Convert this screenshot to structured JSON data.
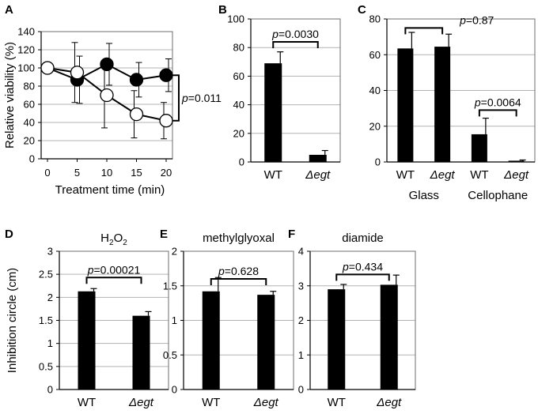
{
  "figure": {
    "background": "#ffffff",
    "bar_color": "#000000",
    "grid_color": "#b3b3b3"
  },
  "chart_data": [
    {
      "id": "A",
      "panel_label": "A",
      "type": "line",
      "xlabel": "Treatment time (min)",
      "ylabel": "Relative viability (%)",
      "x": [
        0,
        5,
        10,
        15,
        20
      ],
      "xticks": [
        "0",
        "5",
        "10",
        "15",
        "20"
      ],
      "ylim": [
        0,
        140
      ],
      "yticks": [
        "0",
        "20",
        "40",
        "60",
        "80",
        "100",
        "120",
        "140"
      ],
      "grid": true,
      "series": [
        {
          "name": "filled",
          "marker": "filled-circle",
          "values": [
            100,
            87,
            104,
            87,
            92
          ],
          "err": [
            0,
            26,
            23,
            19,
            18
          ]
        },
        {
          "name": "open",
          "marker": "open-circle",
          "values": [
            100,
            95,
            70,
            49,
            42
          ],
          "err": [
            0,
            33,
            36,
            26,
            20
          ]
        }
      ],
      "annotation": {
        "p_label": "p",
        "p_value": "=0.011",
        "between_x": 20
      }
    },
    {
      "id": "B",
      "panel_label": "B",
      "type": "bar",
      "title": "",
      "ylabel": "",
      "categories": [
        "WT",
        "Δegt"
      ],
      "values": [
        69,
        5
      ],
      "err": [
        8,
        3
      ],
      "ylim": [
        0,
        100
      ],
      "yticks": [
        "0",
        "20",
        "40",
        "60",
        "80",
        "100"
      ],
      "grid": true,
      "brackets": [
        {
          "from": 0,
          "to": 1,
          "level": 84,
          "p_label": "p",
          "p_value": "=0.0030"
        }
      ]
    },
    {
      "id": "C",
      "panel_label": "C",
      "type": "bar",
      "categories": [
        "WT",
        "Δegt",
        "WT",
        "Δegt"
      ],
      "groups": [
        "Glass",
        "Cellophane"
      ],
      "values": [
        63.5,
        64.5,
        15.5,
        0.7
      ],
      "err": [
        9,
        7,
        9,
        0.4
      ],
      "ylim": [
        0,
        80
      ],
      "yticks": [
        "0",
        "20",
        "40",
        "60",
        "80"
      ],
      "grid": true,
      "brackets": [
        {
          "from": 0,
          "to": 1,
          "level": 75,
          "p_label": "p",
          "p_value": "=0.87"
        },
        {
          "from": 2,
          "to": 3,
          "level": 29,
          "p_label": "p",
          "p_value": "=0.0064"
        }
      ]
    },
    {
      "id": "D",
      "panel_label": "D",
      "type": "bar",
      "title_main": "H",
      "title_sub": "2",
      "title_main2": "O",
      "title_sub2": "2",
      "ylabel": "Inhibition circle (cm)",
      "categories": [
        "WT",
        "Δegt"
      ],
      "values": [
        2.13,
        1.6
      ],
      "err": [
        0.06,
        0.09
      ],
      "ylim": [
        0,
        3
      ],
      "yticks": [
        "0",
        "0.5",
        "1",
        "1.5",
        "2",
        "2.5",
        "3"
      ],
      "grid": true,
      "brackets": [
        {
          "from": 0,
          "to": 1,
          "level": 2.43,
          "p_label": "p",
          "p_value": "=0.00021"
        }
      ]
    },
    {
      "id": "E",
      "panel_label": "E",
      "type": "bar",
      "title": "methylglyoxal",
      "categories": [
        "WT",
        "Δegt"
      ],
      "values": [
        1.42,
        1.37
      ],
      "err": [
        0.2,
        0.05
      ],
      "ylim": [
        0,
        2
      ],
      "yticks": [
        "0",
        "0.5",
        "1",
        "1.5",
        "2"
      ],
      "grid": true,
      "brackets": [
        {
          "from": 0,
          "to": 1,
          "level": 1.6,
          "p_label": "p",
          "p_value": "=0.628"
        }
      ]
    },
    {
      "id": "F",
      "panel_label": "F",
      "type": "bar",
      "title": "diamide",
      "categories": [
        "WT",
        "Δegt"
      ],
      "values": [
        2.9,
        3.03
      ],
      "err": [
        0.14,
        0.28
      ],
      "ylim": [
        0,
        4
      ],
      "yticks": [
        "0",
        "1",
        "2",
        "3",
        "4"
      ],
      "grid": true,
      "brackets": [
        {
          "from": 0,
          "to": 1,
          "level": 3.33,
          "p_label": "p",
          "p_value": "=0.434"
        }
      ]
    }
  ]
}
